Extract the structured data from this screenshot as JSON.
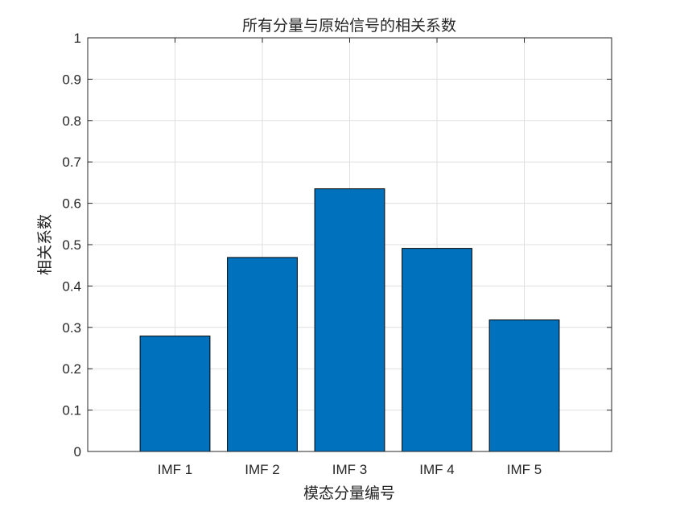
{
  "chart_data": {
    "type": "bar",
    "title": "所有分量与原始信号的相关系数",
    "xlabel": "模态分量编号",
    "ylabel": "相关系数",
    "categories": [
      "IMF 1",
      "IMF 2",
      "IMF 3",
      "IMF 4",
      "IMF 5"
    ],
    "values": [
      0.279,
      0.469,
      0.635,
      0.491,
      0.318
    ],
    "ylim": [
      0,
      1
    ],
    "xlim": [
      0,
      6
    ],
    "yticks": [
      "0",
      "0.1",
      "0.2",
      "0.3",
      "0.4",
      "0.5",
      "0.6",
      "0.7",
      "0.8",
      "0.9",
      "1"
    ],
    "grid": true,
    "legend": "none",
    "colors": {
      "bar": "#0072BD",
      "bar_edge": "#000000",
      "grid": "#DFDFDF",
      "axis": "#262626"
    }
  }
}
